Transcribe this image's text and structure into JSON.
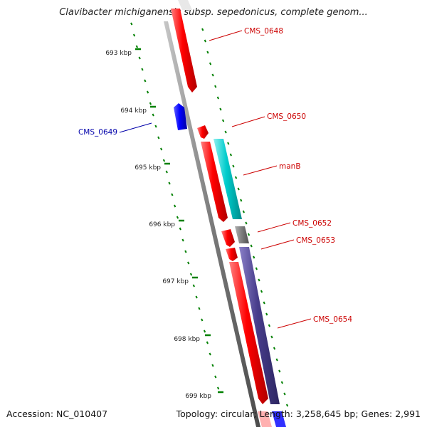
{
  "title": "Clavibacter michiganensis subsp. sepedonicus, complete genom...",
  "footer": {
    "accession": "Accession: NC_010407",
    "summary": "Topology: circular; Length: 3,258,645 bp; Genes: 2,991"
  },
  "ticks": [
    "693 kbp",
    "694 kbp",
    "695 kbp",
    "696 kbp",
    "697 kbp",
    "698 kbp",
    "699 kbp"
  ],
  "genes": [
    {
      "name": "CMS_0648",
      "color": "#ff0000"
    },
    {
      "name": "CMS_0649",
      "color": "#0000ff"
    },
    {
      "name": "CMS_0650",
      "color": "#ff0000"
    },
    {
      "name": "manB",
      "color": "#00c8c8"
    },
    {
      "name": "CMS_0652",
      "color": "#808080"
    },
    {
      "name": "CMS_0653",
      "color": "#ff0000"
    },
    {
      "name": "CMS_0654",
      "color": "#483d8b"
    }
  ],
  "colors": {
    "backbone": "#808080",
    "tick": "#008000",
    "forward_label": "#cc0000",
    "reverse_label": "#0000aa"
  }
}
